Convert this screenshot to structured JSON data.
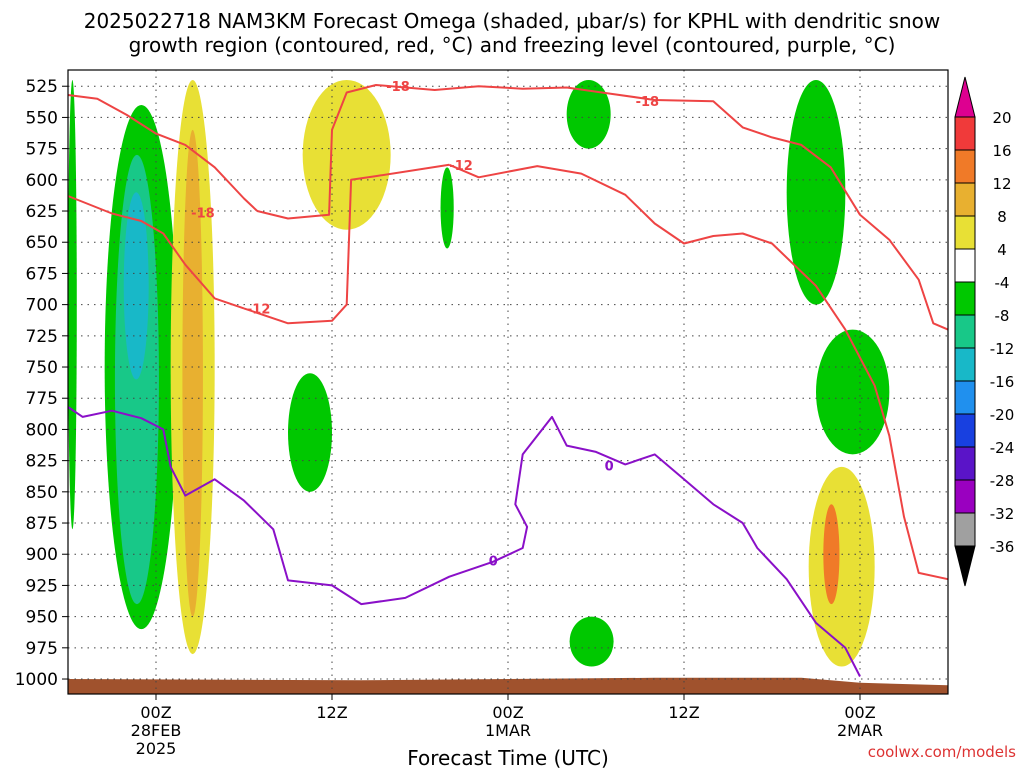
{
  "title_line1": "2025022718 NAM3KM Forecast Omega (shaded, μbar/s) for KPHL with dendritic snow",
  "title_line2": "growth region (contoured, red, °C) and freezing level (contoured, purple, °C)",
  "credit": "coolwx.com/models",
  "chart_data": {
    "type": "time-height cross-section",
    "xlabel": "Forecast Time (UTC)",
    "ylabel": "",
    "x_ticks": [
      {
        "hour": 6,
        "lines": [
          "00Z",
          "28FEB",
          "2025"
        ]
      },
      {
        "hour": 18,
        "lines": [
          "12Z"
        ]
      },
      {
        "hour": 30,
        "lines": [
          "00Z",
          "1MAR"
        ]
      },
      {
        "hour": 42,
        "lines": [
          "12Z"
        ]
      },
      {
        "hour": 54,
        "lines": [
          "00Z",
          "2MAR"
        ]
      }
    ],
    "x_range_hours": [
      0,
      60
    ],
    "y_ticks": [
      525,
      550,
      575,
      600,
      625,
      650,
      675,
      700,
      725,
      750,
      775,
      800,
      825,
      850,
      875,
      900,
      925,
      950,
      975,
      1000
    ],
    "ylim_hpa": [
      512,
      1012
    ],
    "colorbar": {
      "labels": [
        "20",
        "16",
        "12",
        "8",
        "4",
        "-4",
        "-8",
        "-12",
        "-16",
        "-20",
        "-24",
        "-28",
        "-32",
        "-36"
      ],
      "top_color": "#dd0090",
      "bottom_color": "#000000",
      "bins": [
        {
          "color": "#f03a3a"
        },
        {
          "color": "#f07a28"
        },
        {
          "color": "#e8b030"
        },
        {
          "color": "#e8e035"
        },
        {
          "color": "#ffffff"
        },
        {
          "color": "#00c800"
        },
        {
          "color": "#18c888"
        },
        {
          "color": "#18b8c8"
        },
        {
          "color": "#2090ee"
        },
        {
          "color": "#1840e0"
        },
        {
          "color": "#5a14c8"
        },
        {
          "color": "#9a00c0"
        },
        {
          "color": "#a0a0a0"
        }
      ]
    },
    "contours": [
      {
        "label": "-18",
        "color": "#ee4444",
        "label_positions": [
          [
            9.2,
            626
          ],
          [
            22.5,
            525
          ],
          [
            39.5,
            537
          ]
        ],
        "segments": [
          [
            [
              0,
              532
            ],
            [
              2,
              535
            ],
            [
              4,
              548
            ],
            [
              6,
              563
            ],
            [
              8,
              572
            ],
            [
              10,
              590
            ],
            [
              12,
              615
            ],
            [
              12.9,
              625
            ]
          ],
          [
            [
              12.9,
              625
            ],
            [
              15,
              631
            ],
            [
              17.8,
              628
            ],
            [
              18,
              560
            ],
            [
              19,
              530
            ],
            [
              21,
              524
            ],
            [
              25,
              528
            ],
            [
              28,
              525
            ],
            [
              31,
              527
            ],
            [
              34,
              526
            ],
            [
              37,
              531
            ],
            [
              40,
              536
            ],
            [
              44,
              537
            ],
            [
              46,
              558
            ],
            [
              48,
              566
            ],
            [
              50,
              572
            ],
            [
              52,
              590
            ],
            [
              54,
              628
            ],
            [
              56,
              648
            ],
            [
              58,
              680
            ],
            [
              59,
              715
            ],
            [
              60,
              720
            ]
          ]
        ]
      },
      {
        "label": "-12",
        "color": "#ee4444",
        "label_positions": [
          [
            26.8,
            588
          ],
          [
            13.0,
            703
          ]
        ],
        "segments": [
          [
            [
              0,
              613
            ],
            [
              3,
              627
            ],
            [
              5,
              633
            ],
            [
              6.5,
              643
            ],
            [
              8,
              668
            ],
            [
              10,
              695
            ],
            [
              12,
              703
            ]
          ],
          [
            [
              12,
              703
            ],
            [
              15,
              715
            ],
            [
              18,
              713
            ],
            [
              19,
              700
            ],
            [
              19.3,
              600
            ],
            [
              21,
              597
            ],
            [
              26,
              588
            ]
          ],
          [
            [
              26,
              588
            ],
            [
              28,
              598
            ],
            [
              32,
              589
            ],
            [
              35,
              595
            ],
            [
              38,
              612
            ],
            [
              40,
              635
            ],
            [
              42,
              651
            ],
            [
              44,
              645
            ],
            [
              46,
              643
            ],
            [
              48,
              651
            ],
            [
              51,
              685
            ],
            [
              53,
              720
            ],
            [
              55,
              765
            ],
            [
              56,
              805
            ],
            [
              57,
              870
            ],
            [
              58,
              915
            ],
            [
              60,
              920
            ]
          ]
        ]
      },
      {
        "label": "0",
        "color": "#8a10c8",
        "label_positions": [
          [
            29,
            905
          ],
          [
            36.9,
            829
          ]
        ],
        "segments": [
          [
            [
              0,
              782
            ],
            [
              1,
              790
            ],
            [
              3,
              785
            ],
            [
              5,
              791
            ],
            [
              6.5,
              800
            ],
            [
              7,
              830
            ],
            [
              8,
              853
            ],
            [
              10,
              840
            ],
            [
              12,
              857
            ],
            [
              14,
              880
            ],
            [
              15,
              921
            ],
            [
              18,
              925
            ],
            [
              20,
              940
            ],
            [
              23,
              935
            ],
            [
              26,
              918
            ],
            [
              29,
              906
            ],
            [
              31,
              895
            ],
            [
              31.3,
              878
            ],
            [
              30.5,
              860
            ],
            [
              31,
              820
            ],
            [
              33,
              790
            ],
            [
              34,
              813
            ],
            [
              36,
              818
            ],
            [
              38,
              828
            ],
            [
              40,
              820
            ],
            [
              42,
              840
            ],
            [
              44,
              860
            ],
            [
              46,
              875
            ],
            [
              47,
              895
            ],
            [
              49,
              920
            ],
            [
              51,
              955
            ],
            [
              53,
              975
            ],
            [
              54,
              998
            ]
          ]
        ]
      }
    ],
    "omega_regions": [
      {
        "band": "-4",
        "x_hours": [
          0,
          0.6
        ],
        "p_hpa": [
          520,
          880
        ]
      },
      {
        "band": "-4",
        "x_hours": [
          2.5,
          7.5
        ],
        "p_hpa": [
          540,
          960
        ]
      },
      {
        "band": "-8",
        "x_hours": [
          3.2,
          6.2
        ],
        "p_hpa": [
          580,
          940
        ]
      },
      {
        "band": "-12",
        "x_hours": [
          3.8,
          5.5
        ],
        "p_hpa": [
          610,
          760
        ]
      },
      {
        "band": "4",
        "x_hours": [
          7,
          10
        ],
        "p_hpa": [
          520,
          980
        ]
      },
      {
        "band": "8",
        "x_hours": [
          7.8,
          9.2
        ],
        "p_hpa": [
          560,
          950
        ]
      },
      {
        "band": "4",
        "x_hours": [
          16,
          22
        ],
        "p_hpa": [
          520,
          640
        ]
      },
      {
        "band": "-4",
        "x_hours": [
          15,
          18
        ],
        "p_hpa": [
          755,
          850
        ]
      },
      {
        "band": "-4",
        "x_hours": [
          25.4,
          26.3
        ],
        "p_hpa": [
          590,
          655
        ]
      },
      {
        "band": "-4",
        "x_hours": [
          34.2,
          37.2
        ],
        "p_hpa": [
          950,
          990
        ]
      },
      {
        "band": "-4",
        "x_hours": [
          34,
          37
        ],
        "p_hpa": [
          520,
          575
        ]
      },
      {
        "band": "-4",
        "x_hours": [
          49,
          53
        ],
        "p_hpa": [
          520,
          700
        ]
      },
      {
        "band": "-4",
        "x_hours": [
          51,
          56
        ],
        "p_hpa": [
          720,
          820
        ]
      },
      {
        "band": "4",
        "x_hours": [
          50.5,
          55
        ],
        "p_hpa": [
          830,
          990
        ]
      },
      {
        "band": "12",
        "x_hours": [
          51.5,
          52.6
        ],
        "p_hpa": [
          860,
          940
        ]
      }
    ]
  }
}
